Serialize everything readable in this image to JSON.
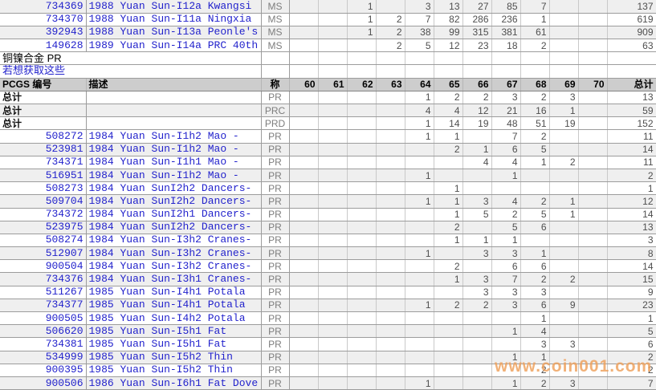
{
  "header": {
    "pcgs": "PCGS 编号",
    "desc": "描述",
    "grade": "称",
    "grades": [
      "60",
      "61",
      "62",
      "63",
      "64",
      "65",
      "66",
      "67",
      "68",
      "69",
      "70"
    ],
    "total": "总计"
  },
  "section_title": "铜镍合金  PR",
  "obtain_link": "若想获取这些",
  "total_label": "总计",
  "watermark": "www.coin001.com",
  "colors": {
    "link_blue": "#2222cc",
    "header_bg": "#cdcdcd",
    "row_alt_bg": "#efefef",
    "grid_dark": "#9c9c9c",
    "grid_light": "#c9c9c9",
    "grade_gray": "#7d7d7d",
    "watermark_orange": "#eea05a"
  },
  "top_rows": [
    {
      "pcgs": "734369",
      "desc": "1988 Yuan Sun-I12a Kwangsi",
      "grade": "MS",
      "cells": [
        "",
        "",
        "1",
        "",
        "3",
        "13",
        "27",
        "85",
        "7",
        "",
        ""
      ],
      "total": "137"
    },
    {
      "pcgs": "734370",
      "desc": "1988 Yuan Sun-I11a Ningxia",
      "grade": "MS",
      "cells": [
        "",
        "",
        "1",
        "2",
        "7",
        "82",
        "286",
        "236",
        "1",
        "",
        ""
      ],
      "total": "619"
    },
    {
      "pcgs": "392943",
      "desc": "1988 Yuan Sun-I13a Peonle's",
      "grade": "MS",
      "cells": [
        "",
        "",
        "1",
        "2",
        "38",
        "99",
        "315",
        "381",
        "61",
        "",
        ""
      ],
      "total": "909"
    },
    {
      "pcgs": "149628",
      "desc": "1989 Yuan Sun-I14a PRC 40th",
      "grade": "MS",
      "cells": [
        "",
        "",
        "",
        "2",
        "5",
        "12",
        "23",
        "18",
        "2",
        "",
        ""
      ],
      "total": "63"
    }
  ],
  "total_rows": [
    {
      "label": "总计",
      "grade": "PR",
      "cells": [
        "",
        "",
        "",
        "",
        "1",
        "2",
        "2",
        "3",
        "2",
        "3",
        ""
      ],
      "total": "13"
    },
    {
      "label": "总计",
      "grade": "PRC",
      "cells": [
        "",
        "",
        "",
        "",
        "4",
        "4",
        "12",
        "21",
        "16",
        "1",
        ""
      ],
      "total": "59"
    },
    {
      "label": "总计",
      "grade": "PRD",
      "cells": [
        "",
        "",
        "",
        "",
        "1",
        "14",
        "19",
        "48",
        "51",
        "19",
        ""
      ],
      "total": "152"
    }
  ],
  "data_rows": [
    {
      "pcgs": "508272",
      "desc": "1984 Yuan Sun-I1h2 Mao -",
      "grade": "PR",
      "cells": [
        "",
        "",
        "",
        "",
        "1",
        "1",
        "",
        "7",
        "2",
        "",
        ""
      ],
      "total": "11"
    },
    {
      "pcgs": "523981",
      "desc": "1984 Yuan Sun-I1h2 Mao -",
      "grade": "PR",
      "cells": [
        "",
        "",
        "",
        "",
        "",
        "2",
        "1",
        "6",
        "5",
        "",
        ""
      ],
      "total": "14"
    },
    {
      "pcgs": "734371",
      "desc": "1984 Yuan Sun-I1h1 Mao -",
      "grade": "PR",
      "cells": [
        "",
        "",
        "",
        "",
        "",
        "",
        "4",
        "4",
        "1",
        "2",
        ""
      ],
      "total": "11"
    },
    {
      "pcgs": "516951",
      "desc": "1984 Yuan Sun-I1h2 Mao -",
      "grade": "PR",
      "cells": [
        "",
        "",
        "",
        "",
        "1",
        "",
        "",
        "1",
        "",
        "",
        ""
      ],
      "total": "2"
    },
    {
      "pcgs": "508273",
      "desc": "1984 Yuan SunI2h2 Dancers-",
      "grade": "PR",
      "cells": [
        "",
        "",
        "",
        "",
        "",
        "1",
        "",
        "",
        "",
        "",
        ""
      ],
      "total": "1"
    },
    {
      "pcgs": "509704",
      "desc": "1984 Yuan SunI2h2 Dancers-",
      "grade": "PR",
      "cells": [
        "",
        "",
        "",
        "",
        "1",
        "1",
        "3",
        "4",
        "2",
        "1",
        ""
      ],
      "total": "12"
    },
    {
      "pcgs": "734372",
      "desc": "1984 Yuan SunI2h1 Dancers-",
      "grade": "PR",
      "cells": [
        "",
        "",
        "",
        "",
        "",
        "1",
        "5",
        "2",
        "5",
        "1",
        ""
      ],
      "total": "14"
    },
    {
      "pcgs": "523975",
      "desc": "1984 Yuan SunI2h2 Dancers-",
      "grade": "PR",
      "cells": [
        "",
        "",
        "",
        "",
        "",
        "2",
        "",
        "5",
        "6",
        "",
        ""
      ],
      "total": "13"
    },
    {
      "pcgs": "508274",
      "desc": "1984 Yuan Sun-I3h2 Cranes-",
      "grade": "PR",
      "cells": [
        "",
        "",
        "",
        "",
        "",
        "1",
        "1",
        "1",
        "",
        "",
        ""
      ],
      "total": "3"
    },
    {
      "pcgs": "512907",
      "desc": "1984 Yuan Sun-I3h2 Cranes-",
      "grade": "PR",
      "cells": [
        "",
        "",
        "",
        "",
        "1",
        "",
        "3",
        "3",
        "1",
        "",
        ""
      ],
      "total": "8"
    },
    {
      "pcgs": "900504",
      "desc": "1984 Yuan Sun-I3h2 Cranes-",
      "grade": "PR",
      "cells": [
        "",
        "",
        "",
        "",
        "",
        "2",
        "",
        "6",
        "6",
        "",
        ""
      ],
      "total": "14"
    },
    {
      "pcgs": "734376",
      "desc": "1984 Yuan Sun-I3h1 Cranes-",
      "grade": "PR",
      "cells": [
        "",
        "",
        "",
        "",
        "",
        "1",
        "3",
        "7",
        "2",
        "2",
        ""
      ],
      "total": "15"
    },
    {
      "pcgs": "511267",
      "desc": "1985 Yuan Sun-I4h1 Potala",
      "grade": "PR",
      "cells": [
        "",
        "",
        "",
        "",
        "",
        "",
        "3",
        "3",
        "3",
        "",
        ""
      ],
      "total": "9"
    },
    {
      "pcgs": "734377",
      "desc": "1985 Yuan Sun-I4h1 Potala",
      "grade": "PR",
      "cells": [
        "",
        "",
        "",
        "",
        "1",
        "2",
        "2",
        "3",
        "6",
        "9",
        ""
      ],
      "total": "23"
    },
    {
      "pcgs": "900505",
      "desc": "1985 Yuan Sun-I4h2 Potala",
      "grade": "PR",
      "cells": [
        "",
        "",
        "",
        "",
        "",
        "",
        "",
        "",
        "1",
        "",
        ""
      ],
      "total": "1"
    },
    {
      "pcgs": "506620",
      "desc": "1985 Yuan Sun-I5h1 Fat",
      "grade": "PR",
      "cells": [
        "",
        "",
        "",
        "",
        "",
        "",
        "",
        "1",
        "4",
        "",
        ""
      ],
      "total": "5"
    },
    {
      "pcgs": "734381",
      "desc": "1985 Yuan Sun-I5h1 Fat",
      "grade": "PR",
      "cells": [
        "",
        "",
        "",
        "",
        "",
        "",
        "",
        "",
        "3",
        "3",
        ""
      ],
      "total": "6"
    },
    {
      "pcgs": "534999",
      "desc": "1985 Yuan Sun-I5h2 Thin",
      "grade": "PR",
      "cells": [
        "",
        "",
        "",
        "",
        "",
        "",
        "",
        "1",
        "1",
        "",
        ""
      ],
      "total": "2"
    },
    {
      "pcgs": "900395",
      "desc": "1985 Yuan Sun-I5h2 Thin",
      "grade": "PR",
      "cells": [
        "",
        "",
        "",
        "",
        "",
        "",
        "",
        "",
        "2",
        "",
        ""
      ],
      "total": "2"
    },
    {
      "pcgs": "900506",
      "desc": "1986 Yuan Sun-I6h1 Fat Dove",
      "grade": "PR",
      "cells": [
        "",
        "",
        "",
        "",
        "1",
        "",
        "",
        "1",
        "2",
        "3",
        ""
      ],
      "total": "7"
    }
  ]
}
